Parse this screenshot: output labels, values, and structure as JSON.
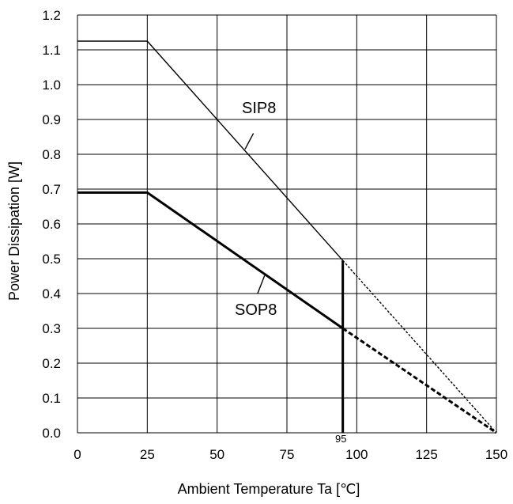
{
  "chart_data": {
    "type": "line",
    "xlabel": "Ambient Temperature Ta [℃]",
    "ylabel": "Power Dissipation [W]",
    "xlim": [
      0,
      150
    ],
    "ylim": [
      0,
      1.2
    ],
    "x_ticks": [
      "0",
      "25",
      "50",
      "75",
      "100",
      "125",
      "150"
    ],
    "y_ticks": [
      "0.0",
      "0.1",
      "0.2",
      "0.3",
      "0.4",
      "0.5",
      "0.6",
      "0.7",
      "0.8",
      "0.9",
      "1.0",
      "1.1",
      "1.2"
    ],
    "grid": true,
    "series": [
      {
        "name": "SIP8",
        "points": [
          [
            0,
            1.125
          ],
          [
            25,
            1.125
          ],
          [
            95,
            0.495
          ]
        ],
        "derating_extension": [
          [
            95,
            0.495
          ],
          [
            150,
            0
          ]
        ],
        "line_weight": "thin"
      },
      {
        "name": "SOP8",
        "points": [
          [
            0,
            0.69
          ],
          [
            25,
            0.69
          ],
          [
            95,
            0.3
          ]
        ],
        "derating_extension": [
          [
            95,
            0.3
          ],
          [
            150,
            0
          ]
        ],
        "line_weight": "thick"
      }
    ],
    "annotations": {
      "vertical_marker_x": 95,
      "vertical_marker_label": "95",
      "vertical_marker_top": 0.495
    }
  }
}
